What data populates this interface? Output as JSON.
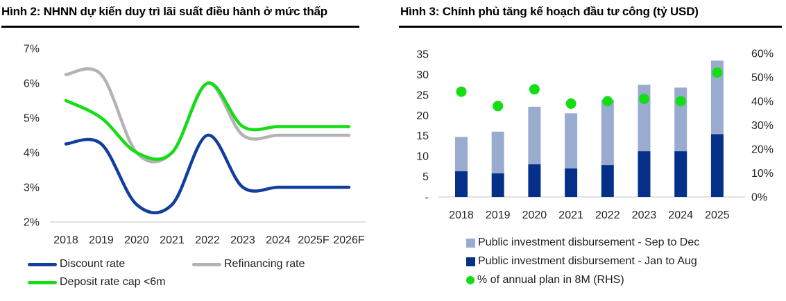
{
  "theme": {
    "background": "#ffffff",
    "title_color": "#000000",
    "axis_text_color": "#262626",
    "axis_line_color": "#d9d9d9"
  },
  "chart_data": [
    {
      "type": "line",
      "panel": "left",
      "title": "Hình 2: NHNN dự kiến duy trì lãi suất điều hành ở mức thấp",
      "categories": [
        "2018",
        "2019",
        "2020",
        "2021",
        "2022",
        "2023",
        "2024",
        "2025F",
        "2026F"
      ],
      "y_axis": {
        "min": 2,
        "max": 7,
        "step": 1,
        "labels": [
          "2%",
          "3%",
          "4%",
          "5%",
          "6%",
          "7%"
        ]
      },
      "ylim": [
        2,
        7
      ],
      "smooth": true,
      "grid": false,
      "legend_position": "bottom",
      "series": [
        {
          "name": "Discount rate",
          "color": "#123f9d",
          "values": [
            4.25,
            4.25,
            2.5,
            2.5,
            4.5,
            3.0,
            3.0,
            3.0,
            3.0
          ]
        },
        {
          "name": "Refinancing rate",
          "color": "#b3b3b3",
          "values": [
            6.25,
            6.25,
            4.0,
            4.0,
            6.0,
            4.5,
            4.5,
            4.5,
            4.5
          ]
        },
        {
          "name": "Deposit rate cap <6m",
          "color": "#14dd14",
          "values": [
            5.5,
            5.0,
            4.0,
            4.0,
            6.0,
            4.75,
            4.75,
            4.75,
            4.75
          ]
        }
      ]
    },
    {
      "type": "bar",
      "panel": "right",
      "title": "Hình 3: Chính phủ tăng kế hoạch đầu tư công (tỷ USD)",
      "categories": [
        "2018",
        "2019",
        "2020",
        "2021",
        "2022",
        "2023",
        "2024",
        "2025"
      ],
      "left_axis": {
        "min": 0,
        "max": 35,
        "step": 5,
        "labels": [
          "-",
          "5",
          "10",
          "15",
          "20",
          "25",
          "30",
          "35"
        ]
      },
      "right_axis": {
        "min": 0,
        "max": 60,
        "step": 10,
        "labels": [
          "0%",
          "10%",
          "20%",
          "30%",
          "40%",
          "50%",
          "60%"
        ]
      },
      "stacked": true,
      "grid": false,
      "legend_position": "bottom",
      "series": [
        {
          "name": "Public investment disbursement - Sep to Dec",
          "kind": "bar",
          "stack_order": "top",
          "color": "#9aabd0",
          "values": [
            8.4,
            10.2,
            14.1,
            13.5,
            16.0,
            16.3,
            15.6,
            18.0
          ]
        },
        {
          "name": "Public investment disbursement - Jan to Aug",
          "kind": "bar",
          "stack_order": "bottom",
          "color": "#05308a",
          "values": [
            6.3,
            5.8,
            8.0,
            7.0,
            7.8,
            11.2,
            11.2,
            15.4
          ]
        },
        {
          "name": "% of annual plan in 8M (RHS)",
          "kind": "dot",
          "axis": "right",
          "color": "#14dd14",
          "values": [
            44,
            38,
            45,
            39,
            40,
            41,
            40,
            52
          ]
        }
      ]
    }
  ]
}
